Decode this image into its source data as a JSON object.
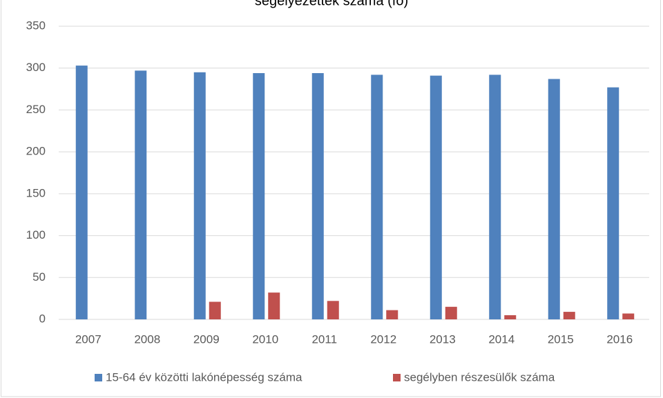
{
  "chart_data": {
    "type": "bar",
    "title": "segélyezettek száma (fő)",
    "categories": [
      "2007",
      "2008",
      "2009",
      "2010",
      "2011",
      "2012",
      "2013",
      "2014",
      "2015",
      "2016"
    ],
    "series": [
      {
        "name": "15-64 év közötti lakónépesség száma",
        "color": "#4f81bd",
        "values": [
          303,
          297,
          295,
          294,
          294,
          292,
          291,
          292,
          287,
          277
        ]
      },
      {
        "name": "segélyben részesülők száma",
        "color": "#c0504d",
        "values": [
          0,
          0,
          21,
          32,
          22,
          11,
          15,
          5,
          9,
          7
        ]
      }
    ],
    "ylim": [
      0,
      350
    ],
    "yticks": [
      0,
      50,
      100,
      150,
      200,
      250,
      300,
      350
    ],
    "grid": true,
    "legend": "bottom"
  }
}
